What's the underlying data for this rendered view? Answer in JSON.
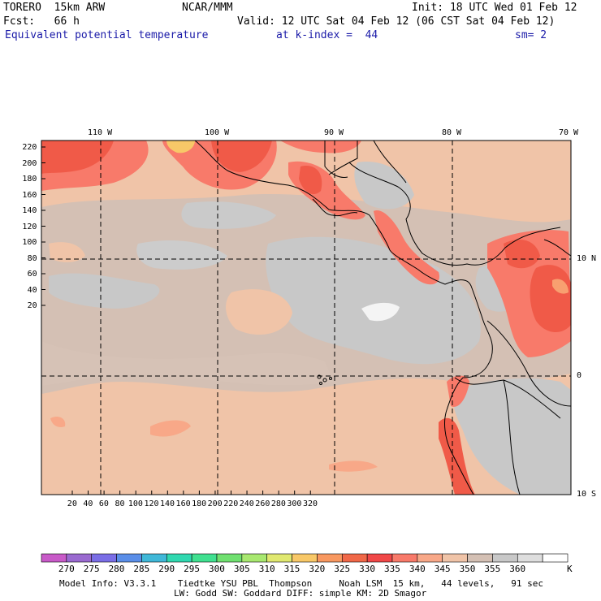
{
  "header": {
    "model": "TORERO  15km ARW",
    "center": "NCAR/MMM",
    "init": "Init: 18 UTC Wed 01 Feb 12",
    "fcst": "Fcst:   66 h",
    "valid": "Valid: 12 UTC Sat 04 Feb 12 (06 CST Sat 04 Feb 12)",
    "field": "Equivalent potential temperature",
    "kindex": "at k-index =  44",
    "smooth": "sm= 2"
  },
  "map": {
    "lon_labels": [
      "110 W",
      "100 W",
      "90 W",
      "80 W",
      "70 W"
    ],
    "lat_labels": [
      "10 N",
      "0",
      "10 S"
    ],
    "y_ticks": [
      "220",
      "200",
      "180",
      "160",
      "140",
      "120",
      "100",
      "80",
      "60",
      "40",
      "20"
    ],
    "x_ticks": [
      "20",
      "40",
      "60",
      "80",
      "100",
      "120",
      "140",
      "160",
      "180",
      "200",
      "220",
      "240",
      "260",
      "280",
      "300",
      "320"
    ]
  },
  "colorbar": {
    "labels": [
      "270",
      "275",
      "280",
      "285",
      "290",
      "295",
      "300",
      "305",
      "310",
      "315",
      "320",
      "325",
      "330",
      "335",
      "340",
      "345",
      "350",
      "355",
      "360"
    ],
    "unit": "K",
    "colors": [
      "#c85ac8",
      "#9a6ad0",
      "#7a6ee6",
      "#5a8ee8",
      "#40b8d8",
      "#30d8b0",
      "#40e090",
      "#70e070",
      "#a8e870",
      "#e0e870",
      "#f8c868",
      "#f89860",
      "#f06848",
      "#f04848",
      "#f87a6a",
      "#f8a888",
      "#f0c4a8",
      "#d4c0b4",
      "#c8c8c8",
      "#dedede",
      "#ffffff"
    ]
  },
  "footer": {
    "line1": "Model Info: V3.3.1    Tiedtke YSU PBL  Thompson     Noah LSM  15 km,   44 levels,   91 sec",
    "line2": "LW: Godd SW: Goddard DIFF: simple KM: 2D Smagor"
  }
}
